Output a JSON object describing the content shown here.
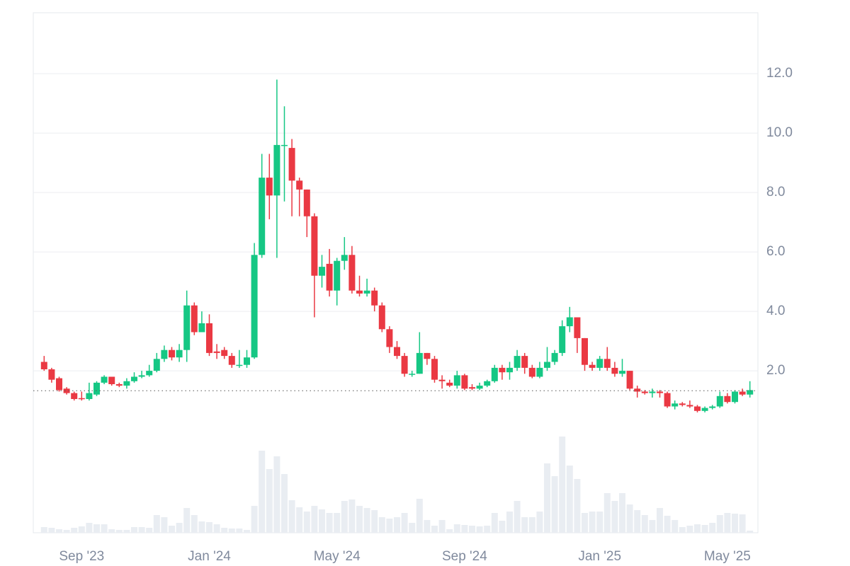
{
  "chart_data": {
    "type": "candlestick",
    "categories": [
      null,
      null,
      null,
      null,
      null,
      "Sep '23",
      null,
      null,
      null,
      null,
      null,
      null,
      null,
      null,
      null,
      null,
      null,
      null,
      null,
      null,
      null,
      null,
      "Jan '24",
      null,
      null,
      null,
      null,
      null,
      null,
      null,
      null,
      null,
      null,
      null,
      null,
      null,
      null,
      null,
      null,
      "May '24",
      null,
      null,
      null,
      null,
      null,
      null,
      null,
      null,
      null,
      null,
      null,
      null,
      null,
      null,
      null,
      null,
      "Sep '24",
      null,
      null,
      null,
      null,
      null,
      null,
      null,
      null,
      null,
      null,
      null,
      null,
      null,
      null,
      null,
      null,
      null,
      "Jan '25",
      null,
      null,
      null,
      null,
      null,
      null,
      null,
      null,
      null,
      null,
      null,
      null,
      null,
      null,
      null,
      null,
      "May '25",
      null,
      null,
      null
    ],
    "open": [
      2.3,
      2.05,
      1.75,
      1.4,
      1.25,
      1.08,
      1.05,
      1.2,
      1.6,
      1.8,
      1.55,
      1.5,
      1.65,
      1.8,
      1.85,
      2.0,
      2.4,
      2.7,
      2.45,
      2.7,
      4.2,
      3.3,
      3.6,
      2.65,
      2.7,
      2.5,
      2.2,
      2.2,
      2.45,
      5.9,
      8.5,
      7.9,
      9.6,
      9.5,
      8.4,
      8.1,
      7.2,
      5.2,
      5.6,
      4.7,
      5.7,
      5.9,
      4.7,
      4.6,
      4.7,
      4.2,
      3.4,
      2.8,
      2.5,
      1.9,
      1.9,
      2.6,
      2.4,
      1.7,
      1.6,
      1.5,
      1.85,
      1.45,
      1.4,
      1.5,
      1.65,
      2.1,
      1.95,
      2.1,
      2.5,
      2.1,
      1.8,
      2.1,
      2.3,
      2.6,
      3.5,
      3.8,
      3.1,
      2.2,
      2.1,
      2.4,
      2.1,
      1.9,
      2.0,
      1.4,
      1.3,
      1.25,
      1.3,
      1.25,
      0.8,
      0.9,
      0.85,
      0.8,
      0.65,
      0.75,
      0.8,
      1.15,
      0.95,
      1.3,
      1.2
    ],
    "high": [
      2.5,
      2.1,
      1.8,
      1.45,
      1.3,
      1.3,
      1.6,
      1.65,
      1.85,
      1.8,
      1.6,
      1.75,
      1.95,
      2.0,
      2.2,
      2.6,
      2.85,
      2.8,
      2.9,
      4.7,
      4.3,
      4.0,
      3.9,
      2.9,
      2.8,
      2.6,
      2.7,
      2.7,
      6.3,
      9.3,
      9.3,
      11.8,
      10.9,
      9.8,
      8.5,
      8.1,
      7.3,
      5.9,
      6.1,
      5.8,
      6.5,
      6.2,
      5.2,
      5.1,
      4.8,
      4.3,
      3.5,
      3.0,
      2.6,
      2.0,
      3.3,
      2.6,
      2.5,
      1.85,
      1.7,
      2.0,
      1.9,
      1.55,
      1.6,
      1.7,
      2.2,
      2.2,
      2.3,
      2.7,
      2.6,
      2.2,
      2.3,
      2.8,
      2.7,
      3.7,
      4.15,
      3.8,
      3.1,
      2.3,
      2.5,
      2.8,
      2.3,
      2.4,
      2.0,
      1.5,
      1.35,
      1.4,
      1.35,
      1.3,
      1.0,
      0.95,
      1.0,
      0.85,
      0.8,
      0.85,
      1.3,
      1.25,
      1.35,
      1.4,
      1.65
    ],
    "low": [
      2.0,
      1.6,
      1.3,
      1.2,
      1.0,
      1.0,
      1.0,
      1.15,
      1.55,
      1.5,
      1.45,
      1.4,
      1.6,
      1.75,
      1.8,
      1.95,
      2.3,
      2.35,
      2.3,
      2.3,
      3.2,
      3.3,
      2.5,
      2.4,
      2.4,
      2.1,
      2.1,
      2.1,
      2.4,
      5.8,
      7.1,
      5.8,
      7.7,
      7.2,
      7.2,
      6.5,
      3.8,
      4.8,
      4.5,
      4.2,
      5.4,
      4.6,
      4.5,
      4.5,
      4.0,
      3.3,
      2.6,
      2.4,
      1.8,
      1.8,
      1.9,
      2.2,
      1.6,
      1.4,
      1.45,
      1.4,
      1.35,
      1.35,
      1.35,
      1.45,
      1.6,
      1.7,
      1.7,
      2.0,
      1.9,
      1.75,
      1.75,
      2.0,
      2.2,
      2.5,
      3.3,
      2.6,
      2.0,
      2.0,
      2.0,
      2.0,
      1.8,
      1.8,
      1.35,
      1.1,
      1.2,
      1.1,
      1.1,
      0.75,
      0.7,
      0.8,
      0.75,
      0.6,
      0.6,
      0.7,
      0.75,
      0.9,
      0.9,
      1.15,
      1.1
    ],
    "close": [
      2.05,
      1.7,
      1.35,
      1.25,
      1.05,
      1.05,
      1.25,
      1.6,
      1.8,
      1.55,
      1.5,
      1.65,
      1.8,
      1.85,
      2.0,
      2.4,
      2.7,
      2.45,
      2.7,
      4.2,
      3.3,
      3.6,
      2.6,
      2.6,
      2.5,
      2.2,
      2.2,
      2.45,
      5.9,
      8.5,
      7.9,
      9.6,
      9.6,
      8.4,
      8.1,
      7.2,
      5.2,
      5.5,
      4.7,
      5.7,
      5.9,
      4.7,
      4.6,
      4.7,
      4.2,
      3.4,
      2.8,
      2.5,
      1.9,
      1.9,
      2.6,
      2.4,
      1.7,
      1.65,
      1.5,
      1.85,
      1.4,
      1.4,
      1.5,
      1.65,
      2.1,
      1.95,
      2.1,
      2.5,
      2.1,
      1.8,
      2.1,
      2.3,
      2.6,
      3.5,
      3.8,
      3.1,
      2.2,
      2.1,
      2.4,
      2.1,
      1.9,
      2.0,
      1.4,
      1.3,
      1.25,
      1.3,
      1.25,
      0.8,
      0.9,
      0.85,
      0.8,
      0.65,
      0.75,
      0.8,
      1.15,
      0.95,
      1.3,
      1.2,
      1.35
    ],
    "volume": [
      8,
      7,
      5,
      4,
      7,
      9,
      14,
      12,
      12,
      5,
      4,
      4,
      8,
      8,
      7,
      25,
      22,
      10,
      14,
      35,
      25,
      16,
      15,
      12,
      7,
      6,
      6,
      4,
      38,
      116,
      90,
      108,
      83,
      46,
      36,
      30,
      38,
      33,
      28,
      28,
      45,
      47,
      38,
      35,
      32,
      22,
      20,
      22,
      28,
      14,
      48,
      18,
      10,
      18,
      5,
      12,
      11,
      10,
      9,
      10,
      28,
      17,
      30,
      45,
      22,
      22,
      30,
      98,
      80,
      136,
      95,
      76,
      28,
      30,
      30,
      56,
      45,
      56,
      40,
      32,
      25,
      18,
      35,
      24,
      18,
      8,
      10,
      12,
      11,
      14,
      25,
      28,
      27,
      26,
      3
    ],
    "up_color": "#16c784",
    "down_color": "#ea3943",
    "volume_color": "#e9edf2",
    "last_price": 1.33,
    "ylim": [
      -3.45,
      14.05
    ],
    "yticks": [
      {
        "value": 2,
        "label": "2.0"
      },
      {
        "value": 4,
        "label": "4.0"
      },
      {
        "value": 6,
        "label": "6.0"
      },
      {
        "value": 8,
        "label": "8.0"
      },
      {
        "value": 10,
        "label": "10.0"
      },
      {
        "value": 12,
        "label": "12.0"
      }
    ],
    "grid": true
  }
}
